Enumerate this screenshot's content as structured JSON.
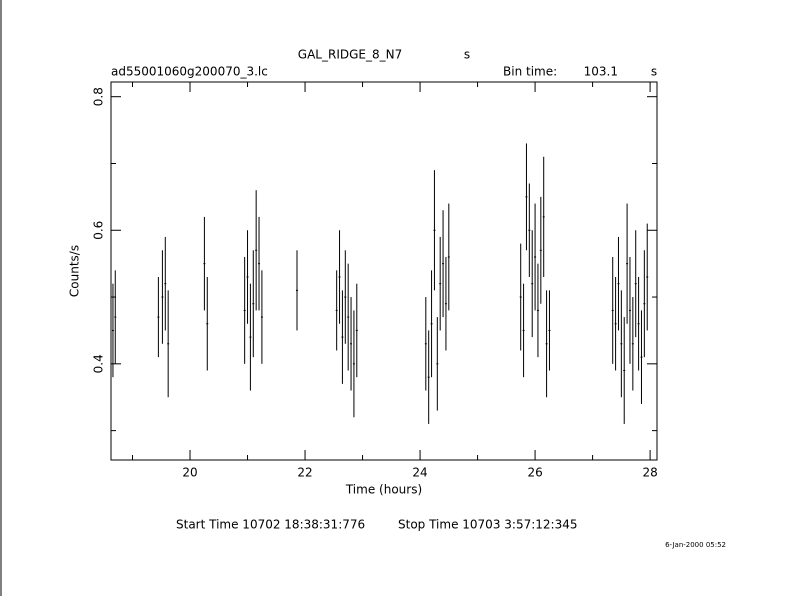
{
  "chart_data": {
    "type": "errorbar",
    "title": "GAL_RIDGE_8_N7",
    "title_unit": "s",
    "subtitle": "ad55001060g200070_3.lc",
    "bin_time_label": "Bin time:",
    "bin_time": 103.1,
    "bin_time_unit": "s",
    "x_label": "Time (hours)",
    "y_label": "Counts/s",
    "start_time": "Start Time 10702 18:38:31:776",
    "stop_time": "Stop Time 10703  3:57:12:345",
    "footer_date": "6-Jan-2000 05:52",
    "color": "#000000",
    "xlim": [
      18.626,
      28.12
    ],
    "ylim": [
      0.256,
      0.822
    ],
    "xticks": [
      20,
      22,
      24,
      26,
      28
    ],
    "xminorticks": [
      19,
      21,
      23,
      25,
      27
    ],
    "yticks": [
      0.4,
      0.6,
      0.8
    ],
    "yminorticks": [
      0.3,
      0.5,
      0.7
    ],
    "x": [
      18.66,
      18.7,
      19.45,
      19.52,
      19.57,
      19.62,
      20.25,
      20.3,
      20.95,
      21.0,
      21.05,
      21.1,
      21.15,
      21.2,
      21.25,
      21.86,
      22.55,
      22.6,
      22.65,
      22.7,
      22.75,
      22.8,
      22.85,
      22.9,
      24.1,
      24.15,
      24.2,
      24.25,
      24.3,
      24.35,
      24.4,
      24.45,
      24.5,
      25.75,
      25.8,
      25.85,
      25.9,
      25.95,
      26.0,
      26.05,
      26.1,
      26.15,
      26.2,
      26.25,
      27.35,
      27.4,
      27.45,
      27.5,
      27.55,
      27.6,
      27.65,
      27.7,
      27.75,
      27.8,
      27.85,
      27.9,
      27.95
    ],
    "values": [
      0.45,
      0.47,
      0.47,
      0.5,
      0.52,
      0.43,
      0.55,
      0.46,
      0.48,
      0.53,
      0.44,
      0.49,
      0.57,
      0.55,
      0.47,
      0.51,
      0.48,
      0.53,
      0.44,
      0.5,
      0.47,
      0.43,
      0.4,
      0.45,
      0.43,
      0.38,
      0.46,
      0.6,
      0.4,
      0.52,
      0.55,
      0.49,
      0.56,
      0.5,
      0.45,
      0.65,
      0.6,
      0.52,
      0.56,
      0.48,
      0.57,
      0.62,
      0.43,
      0.45,
      0.48,
      0.46,
      0.52,
      0.43,
      0.39,
      0.55,
      0.48,
      0.43,
      0.52,
      0.46,
      0.41,
      0.49,
      0.53
    ],
    "errors": [
      0.07,
      0.07,
      0.06,
      0.07,
      0.07,
      0.08,
      0.07,
      0.07,
      0.08,
      0.07,
      0.08,
      0.08,
      0.09,
      0.07,
      0.07,
      0.06,
      0.06,
      0.07,
      0.07,
      0.07,
      0.08,
      0.07,
      0.08,
      0.07,
      0.07,
      0.07,
      0.08,
      0.09,
      0.07,
      0.07,
      0.08,
      0.07,
      0.08,
      0.08,
      0.07,
      0.08,
      0.07,
      0.08,
      0.08,
      0.07,
      0.08,
      0.09,
      0.08,
      0.06,
      0.08,
      0.07,
      0.07,
      0.08,
      0.08,
      0.09,
      0.08,
      0.07,
      0.08,
      0.07,
      0.07,
      0.08,
      0.08
    ]
  }
}
